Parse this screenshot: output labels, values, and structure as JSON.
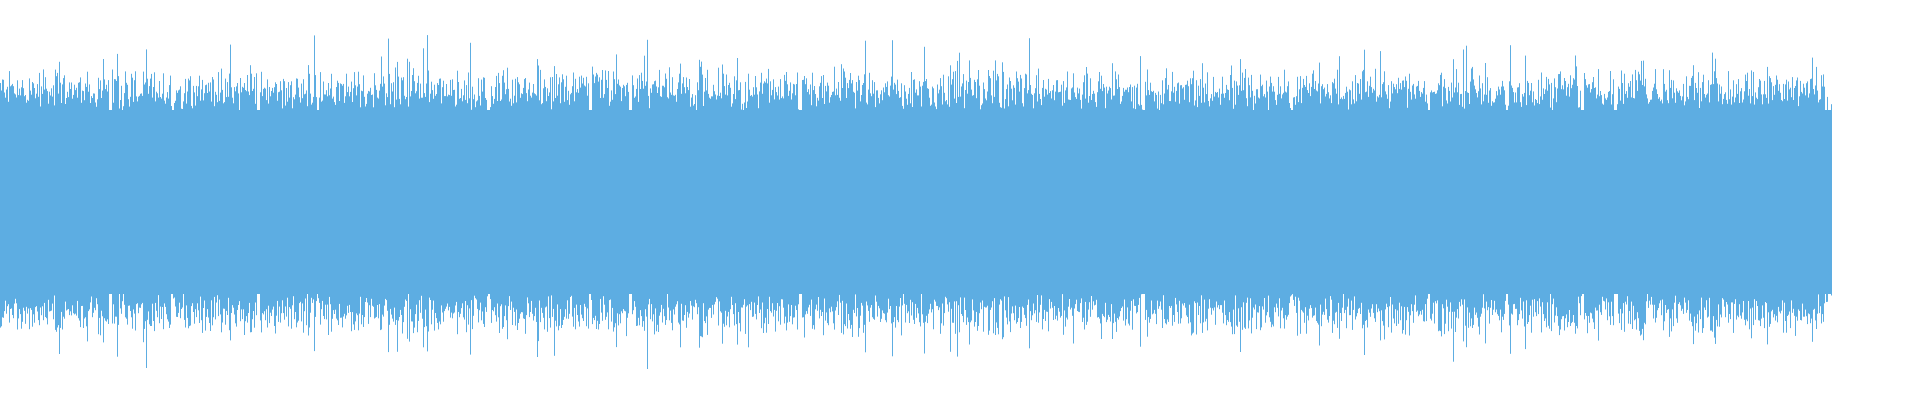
{
  "chart_data": {
    "type": "area",
    "kind": "audio-waveform",
    "color": "#5DADE2",
    "background": "#FFFFFF",
    "axes_visible": false,
    "grid": false,
    "legend": "none",
    "title": ""
  }
}
